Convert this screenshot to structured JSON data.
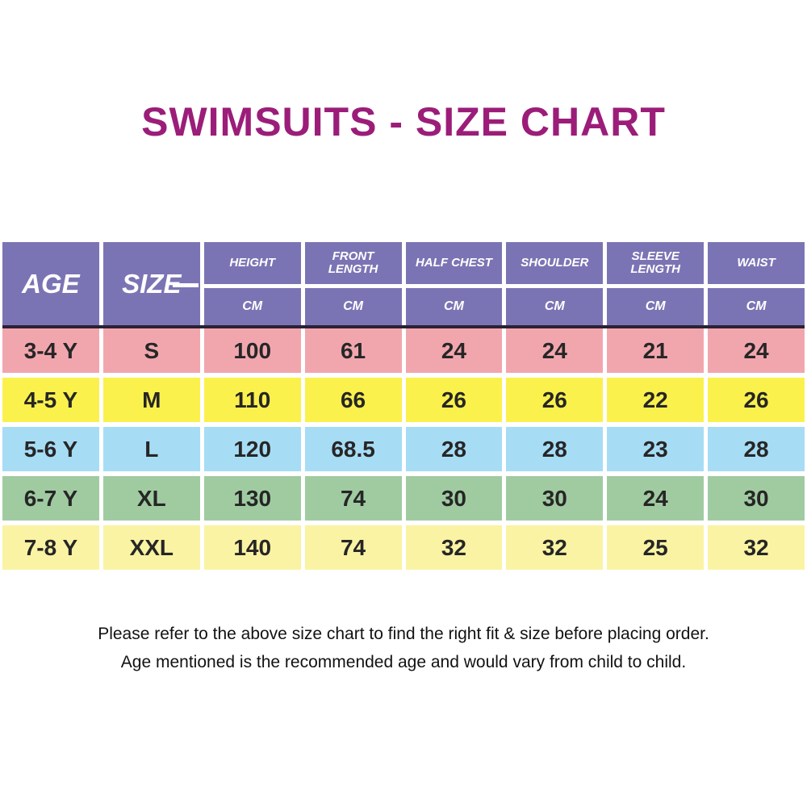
{
  "title": "SWIMSUITS - SIZE CHART",
  "colors": {
    "title_text": "#9b1d79",
    "header_background": "#7b74b4",
    "header_text": "#ffffff",
    "header_divider_line": "#2a2135",
    "row_pink": "#f1a6ae",
    "row_yellow": "#fbf14d",
    "row_blue": "#a7dcf5",
    "row_green": "#a0cba1",
    "row_pale_yellow": "#faf3a3",
    "cell_text": "#262626"
  },
  "table": {
    "age_header": "AGE",
    "size_header": "SIZE",
    "unit_label": "CM",
    "measure_columns": [
      "HEIGHT",
      "FRONT LENGTH",
      "HALF CHEST",
      "SHOULDER",
      "SLEEVE LENGTH",
      "WAIST"
    ],
    "rows": [
      {
        "age": "3-4 Y",
        "size": "S",
        "color": "#f1a6ae",
        "values": [
          "100",
          "61",
          "24",
          "24",
          "21",
          "24"
        ]
      },
      {
        "age": "4-5 Y",
        "size": "M",
        "color": "#fbf14d",
        "values": [
          "110",
          "66",
          "26",
          "26",
          "22",
          "26"
        ]
      },
      {
        "age": "5-6 Y",
        "size": "L",
        "color": "#a7dcf5",
        "values": [
          "120",
          "68.5",
          "28",
          "28",
          "23",
          "28"
        ]
      },
      {
        "age": "6-7 Y",
        "size": "XL",
        "color": "#a0cba1",
        "values": [
          "130",
          "74",
          "30",
          "30",
          "24",
          "30"
        ]
      },
      {
        "age": "7-8 Y",
        "size": "XXL",
        "color": "#faf3a3",
        "values": [
          "140",
          "74",
          "32",
          "32",
          "25",
          "32"
        ]
      }
    ]
  },
  "chart_data": {
    "type": "table",
    "title": "SWIMSUITS - SIZE CHART",
    "columns": [
      "AGE",
      "SIZE",
      "HEIGHT (CM)",
      "FRONT LENGTH (CM)",
      "HALF CHEST (CM)",
      "SHOULDER (CM)",
      "SLEEVE LENGTH (CM)",
      "WAIST (CM)"
    ],
    "rows": [
      [
        "3-4 Y",
        "S",
        100,
        61,
        24,
        24,
        21,
        24
      ],
      [
        "4-5 Y",
        "M",
        110,
        66,
        26,
        26,
        22,
        26
      ],
      [
        "5-6 Y",
        "L",
        120,
        68.5,
        28,
        28,
        23,
        28
      ],
      [
        "6-7 Y",
        "XL",
        130,
        74,
        30,
        30,
        24,
        30
      ],
      [
        "7-8 Y",
        "XXL",
        140,
        74,
        32,
        32,
        25,
        32
      ]
    ]
  },
  "footer": {
    "line1": "Please refer to the above size chart to find the right fit & size before placing order.",
    "line2": "Age mentioned is the recommended age and would vary from child to child."
  }
}
